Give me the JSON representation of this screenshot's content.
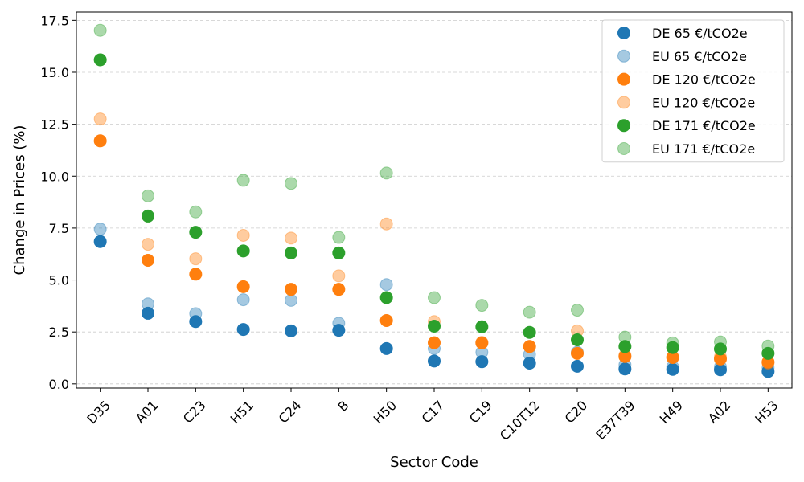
{
  "chart_data": {
    "type": "scatter",
    "title": "",
    "xlabel": "Sector Code",
    "ylabel": "Change in Prices (%)",
    "categories": [
      "D35",
      "A01",
      "C23",
      "H51",
      "C24",
      "B",
      "H50",
      "C17",
      "C19",
      "C10T12",
      "C20",
      "E37T39",
      "H49",
      "A02",
      "H53"
    ],
    "ylim": [
      -0.2,
      17.9
    ],
    "yticks": [
      0.0,
      2.5,
      5.0,
      7.5,
      10.0,
      12.5,
      15.0,
      17.5
    ],
    "ytick_labels": [
      "0.0",
      "2.5",
      "5.0",
      "7.5",
      "10.0",
      "12.5",
      "15.0",
      "17.5"
    ],
    "grid": "y-dashed",
    "legend_position": "top-right",
    "series": [
      {
        "name": "DE 65 €/tCO2e",
        "color": "#1f77b4",
        "alpha": 1.0,
        "values": [
          6.85,
          3.4,
          3.0,
          2.62,
          2.55,
          2.58,
          1.7,
          1.1,
          1.07,
          1.0,
          0.85,
          0.72,
          0.7,
          0.68,
          0.6
        ]
      },
      {
        "name": "EU 65 €/tCO2e",
        "color": "#1f77b4",
        "alpha": 0.4,
        "values": [
          7.45,
          3.85,
          3.38,
          4.05,
          4.02,
          2.92,
          4.78,
          1.7,
          1.52,
          1.42,
          1.52,
          0.92,
          0.82,
          0.82,
          0.78
        ]
      },
      {
        "name": "DE 120 €/tCO2e",
        "color": "#ff7f0e",
        "alpha": 1.0,
        "values": [
          11.7,
          5.95,
          5.28,
          4.68,
          4.55,
          4.55,
          3.05,
          1.98,
          1.97,
          1.8,
          1.47,
          1.32,
          1.27,
          1.2,
          1.05
        ]
      },
      {
        "name": "EU 120 €/tCO2e",
        "color": "#ff7f0e",
        "alpha": 0.4,
        "values": [
          12.75,
          6.72,
          6.02,
          7.15,
          7.02,
          5.2,
          7.7,
          3.0,
          2.0,
          1.8,
          2.55,
          1.38,
          1.3,
          1.3,
          1.0
        ]
      },
      {
        "name": "DE 171 €/tCO2e",
        "color": "#2ca02c",
        "alpha": 1.0,
        "values": [
          15.6,
          8.08,
          7.3,
          6.4,
          6.3,
          6.3,
          4.15,
          2.78,
          2.75,
          2.48,
          2.12,
          1.8,
          1.75,
          1.68,
          1.47
        ]
      },
      {
        "name": "EU 171 €/tCO2e",
        "color": "#2ca02c",
        "alpha": 0.4,
        "values": [
          17.02,
          9.05,
          8.28,
          9.8,
          9.65,
          7.05,
          10.15,
          4.15,
          3.78,
          3.45,
          3.55,
          2.25,
          1.97,
          2.02,
          1.82
        ]
      }
    ]
  }
}
